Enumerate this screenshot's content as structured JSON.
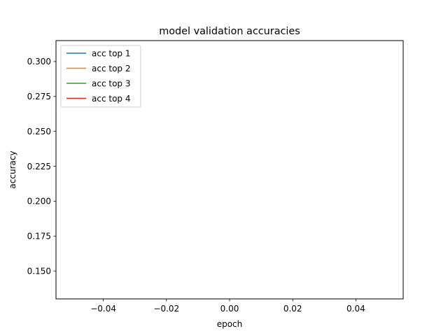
{
  "chart_data": {
    "type": "line",
    "title": "model validation accuracies",
    "xlabel": "epoch",
    "ylabel": "accuracy",
    "xlim": [
      -0.055,
      0.055
    ],
    "ylim": [
      0.13,
      0.315
    ],
    "xticks": [
      -0.04,
      -0.02,
      0.0,
      0.02,
      0.04
    ],
    "xtick_labels": [
      "−0.04",
      "−0.02",
      "0.00",
      "0.02",
      "0.04"
    ],
    "yticks": [
      0.15,
      0.175,
      0.2,
      0.225,
      0.25,
      0.275,
      0.3
    ],
    "ytick_labels": [
      "0.150",
      "0.175",
      "0.200",
      "0.225",
      "0.250",
      "0.275",
      "0.300"
    ],
    "grid": false,
    "legend_position": "upper left",
    "series": [
      {
        "name": "acc top 1",
        "color": "#1f77b4",
        "x": [],
        "y": []
      },
      {
        "name": "acc top 2",
        "color": "#ff7f0e",
        "x": [],
        "y": []
      },
      {
        "name": "acc top 3",
        "color": "#2ca02c",
        "x": [],
        "y": []
      },
      {
        "name": "acc top 4",
        "color": "#d62728",
        "x": [],
        "y": []
      }
    ]
  }
}
